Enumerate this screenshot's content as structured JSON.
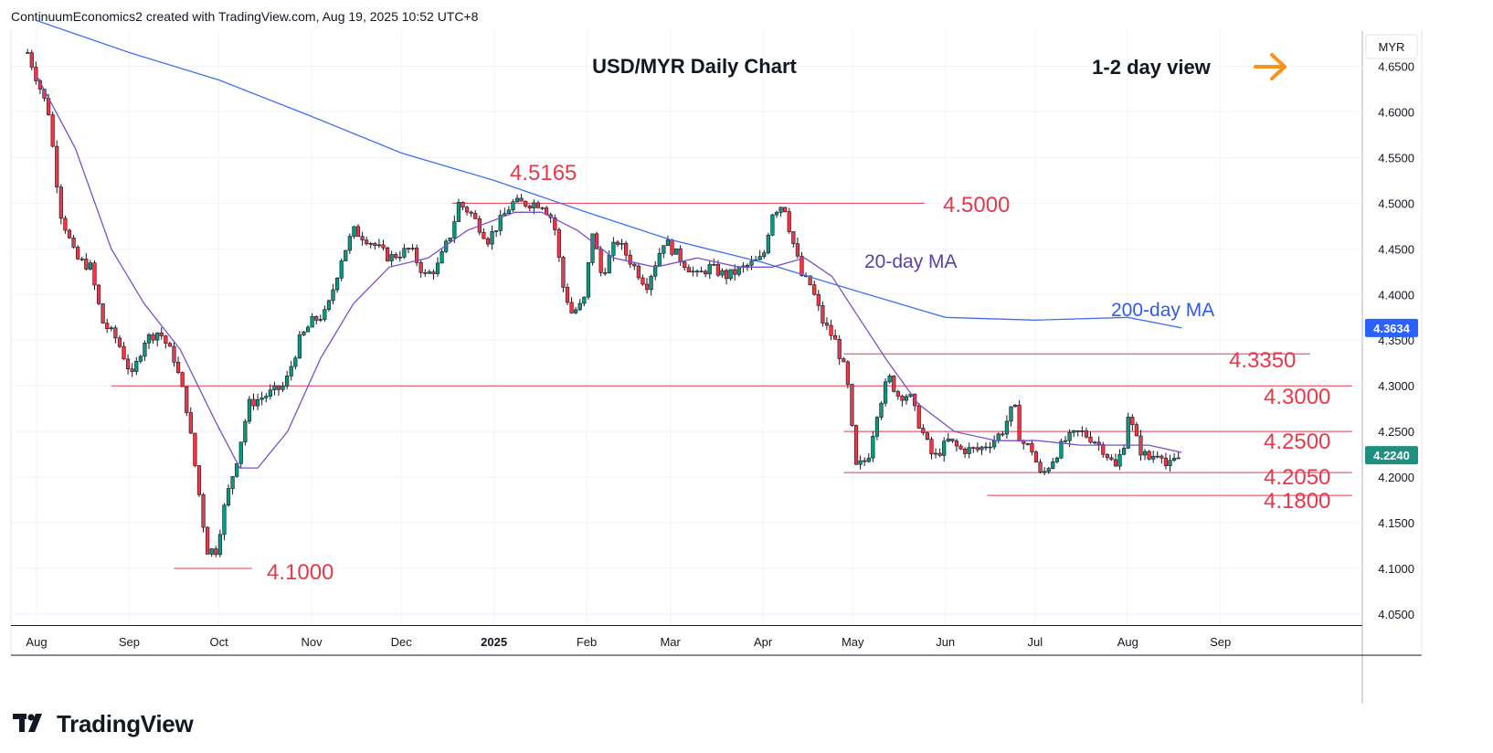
{
  "header": {
    "text": "ContinuumEconomics2 created with TradingView.com, Aug 19, 2025 10:52 UTC+8"
  },
  "footer": {
    "brand": "TradingView"
  },
  "colors": {
    "up": "#089981",
    "down": "#f23645",
    "ma20": "#7b4fc9",
    "ma200": "#3f6ff0",
    "level_line": "#e5394b",
    "level_text": "#e5394b",
    "arrow": "#f7931a",
    "price_tag": "#1f8f7f",
    "ma200_tag": "#2962ff"
  },
  "chart_data": {
    "type": "candlestick",
    "title": "USD/MYR Daily Chart",
    "subtitle": "1-2 day view",
    "currency": "MYR",
    "ylim": [
      4.04,
      4.69
    ],
    "yticks": [
      "4.6500",
      "4.6000",
      "4.5500",
      "4.5000",
      "4.4500",
      "4.4000",
      "4.3500",
      "4.3000",
      "4.2500",
      "4.2000",
      "4.1500",
      "4.1000",
      "4.0500"
    ],
    "xticks": [
      "Aug",
      "Sep",
      "Oct",
      "Nov",
      "Dec",
      "2025",
      "Feb",
      "Mar",
      "Apr",
      "May",
      "Jun",
      "Jul",
      "Aug",
      "Sep"
    ],
    "last_price": "4.2240",
    "ma200_value": "4.3634",
    "levels": [
      {
        "label": "4.5165",
        "value": 4.5165,
        "line": false
      },
      {
        "label": "4.5000",
        "value": 4.5,
        "line": true
      },
      {
        "label": "4.3350",
        "value": 4.335,
        "line": true
      },
      {
        "label": "4.3000",
        "value": 4.3,
        "line": true
      },
      {
        "label": "4.2500",
        "value": 4.25,
        "line": true
      },
      {
        "label": "4.2050",
        "value": 4.205,
        "line": true
      },
      {
        "label": "4.1800",
        "value": 4.18,
        "line": true
      },
      {
        "label": "4.1000",
        "value": 4.1,
        "line": true
      }
    ],
    "annotations": [
      "20-day MA",
      "200-day MA"
    ],
    "series": [
      {
        "name": "USD/MYR",
        "kind": "ohlc"
      },
      {
        "name": "20-day MA",
        "kind": "line"
      },
      {
        "name": "200-day MA",
        "kind": "line"
      }
    ],
    "close_path": [
      {
        "date": "2024-07-29",
        "v": 4.665
      },
      {
        "date": "2024-08-05",
        "v": 4.6
      },
      {
        "date": "2024-08-09",
        "v": 4.49
      },
      {
        "date": "2024-08-14",
        "v": 4.44
      },
      {
        "date": "2024-08-19",
        "v": 4.43
      },
      {
        "date": "2024-08-23",
        "v": 4.37
      },
      {
        "date": "2024-08-28",
        "v": 4.35
      },
      {
        "date": "2024-09-02",
        "v": 4.31
      },
      {
        "date": "2024-09-06",
        "v": 4.35
      },
      {
        "date": "2024-09-11",
        "v": 4.36
      },
      {
        "date": "2024-09-16",
        "v": 4.33
      },
      {
        "date": "2024-09-20",
        "v": 4.28
      },
      {
        "date": "2024-09-24",
        "v": 4.19
      },
      {
        "date": "2024-09-27",
        "v": 4.12
      },
      {
        "date": "2024-09-30",
        "v": 4.12
      },
      {
        "date": "2024-10-03",
        "v": 4.17
      },
      {
        "date": "2024-10-07",
        "v": 4.22
      },
      {
        "date": "2024-10-11",
        "v": 4.28
      },
      {
        "date": "2024-10-17",
        "v": 4.29
      },
      {
        "date": "2024-10-23",
        "v": 4.3
      },
      {
        "date": "2024-10-28",
        "v": 4.35
      },
      {
        "date": "2024-11-01",
        "v": 4.37
      },
      {
        "date": "2024-11-06",
        "v": 4.38
      },
      {
        "date": "2024-11-11",
        "v": 4.44
      },
      {
        "date": "2024-11-15",
        "v": 4.47
      },
      {
        "date": "2024-11-20",
        "v": 4.46
      },
      {
        "date": "2024-11-27",
        "v": 4.44
      },
      {
        "date": "2024-12-04",
        "v": 4.45
      },
      {
        "date": "2024-12-09",
        "v": 4.42
      },
      {
        "date": "2024-12-13",
        "v": 4.43
      },
      {
        "date": "2024-12-18",
        "v": 4.47
      },
      {
        "date": "2024-12-20",
        "v": 4.5
      },
      {
        "date": "2024-12-24",
        "v": 4.49
      },
      {
        "date": "2024-12-30",
        "v": 4.46
      },
      {
        "date": "2025-01-03",
        "v": 4.48
      },
      {
        "date": "2025-01-07",
        "v": 4.5
      },
      {
        "date": "2025-01-13",
        "v": 4.5
      },
      {
        "date": "2025-01-17",
        "v": 4.5
      },
      {
        "date": "2025-01-21",
        "v": 4.48
      },
      {
        "date": "2025-01-24",
        "v": 4.41
      },
      {
        "date": "2025-01-27",
        "v": 4.38
      },
      {
        "date": "2025-01-31",
        "v": 4.39
      },
      {
        "date": "2025-02-03",
        "v": 4.47
      },
      {
        "date": "2025-02-06",
        "v": 4.42
      },
      {
        "date": "2025-02-11",
        "v": 4.46
      },
      {
        "date": "2025-02-17",
        "v": 4.43
      },
      {
        "date": "2025-02-21",
        "v": 4.41
      },
      {
        "date": "2025-02-27",
        "v": 4.46
      },
      {
        "date": "2025-03-04",
        "v": 4.44
      },
      {
        "date": "2025-03-10",
        "v": 4.42
      },
      {
        "date": "2025-03-14",
        "v": 4.43
      },
      {
        "date": "2025-03-20",
        "v": 4.42
      },
      {
        "date": "2025-03-26",
        "v": 4.43
      },
      {
        "date": "2025-04-01",
        "v": 4.44
      },
      {
        "date": "2025-04-04",
        "v": 4.49
      },
      {
        "date": "2025-04-08",
        "v": 4.5
      },
      {
        "date": "2025-04-10",
        "v": 4.47
      },
      {
        "date": "2025-04-14",
        "v": 4.42
      },
      {
        "date": "2025-04-17",
        "v": 4.41
      },
      {
        "date": "2025-04-21",
        "v": 4.37
      },
      {
        "date": "2025-04-25",
        "v": 4.35
      },
      {
        "date": "2025-04-29",
        "v": 4.31
      },
      {
        "date": "2025-05-02",
        "v": 4.21
      },
      {
        "date": "2025-05-06",
        "v": 4.22
      },
      {
        "date": "2025-05-09",
        "v": 4.27
      },
      {
        "date": "2025-05-13",
        "v": 4.31
      },
      {
        "date": "2025-05-16",
        "v": 4.29
      },
      {
        "date": "2025-05-20",
        "v": 4.29
      },
      {
        "date": "2025-05-23",
        "v": 4.26
      },
      {
        "date": "2025-05-28",
        "v": 4.22
      },
      {
        "date": "2025-06-02",
        "v": 4.24
      },
      {
        "date": "2025-06-06",
        "v": 4.23
      },
      {
        "date": "2025-06-12",
        "v": 4.23
      },
      {
        "date": "2025-06-17",
        "v": 4.24
      },
      {
        "date": "2025-06-20",
        "v": 4.25
      },
      {
        "date": "2025-06-24",
        "v": 4.28
      },
      {
        "date": "2025-06-26",
        "v": 4.24
      },
      {
        "date": "2025-06-30",
        "v": 4.23
      },
      {
        "date": "2025-07-03",
        "v": 4.2
      },
      {
        "date": "2025-07-07",
        "v": 4.22
      },
      {
        "date": "2025-07-11",
        "v": 4.24
      },
      {
        "date": "2025-07-16",
        "v": 4.25
      },
      {
        "date": "2025-07-21",
        "v": 4.24
      },
      {
        "date": "2025-07-24",
        "v": 4.23
      },
      {
        "date": "2025-07-28",
        "v": 4.21
      },
      {
        "date": "2025-07-31",
        "v": 4.24
      },
      {
        "date": "2025-08-01",
        "v": 4.27
      },
      {
        "date": "2025-08-05",
        "v": 4.23
      },
      {
        "date": "2025-08-08",
        "v": 4.22
      },
      {
        "date": "2025-08-12",
        "v": 4.23
      },
      {
        "date": "2025-08-14",
        "v": 4.21
      },
      {
        "date": "2025-08-19",
        "v": 4.224
      }
    ],
    "ma20_path": [
      {
        "date": "2024-08-01",
        "v": 4.64
      },
      {
        "date": "2024-08-14",
        "v": 4.56
      },
      {
        "date": "2024-08-26",
        "v": 4.45
      },
      {
        "date": "2024-09-06",
        "v": 4.39
      },
      {
        "date": "2024-09-18",
        "v": 4.34
      },
      {
        "date": "2024-09-30",
        "v": 4.26
      },
      {
        "date": "2024-10-08",
        "v": 4.21
      },
      {
        "date": "2024-10-14",
        "v": 4.21
      },
      {
        "date": "2024-10-24",
        "v": 4.25
      },
      {
        "date": "2024-11-04",
        "v": 4.33
      },
      {
        "date": "2024-11-15",
        "v": 4.39
      },
      {
        "date": "2024-11-27",
        "v": 4.43
      },
      {
        "date": "2024-12-10",
        "v": 4.44
      },
      {
        "date": "2024-12-23",
        "v": 4.47
      },
      {
        "date": "2025-01-08",
        "v": 4.49
      },
      {
        "date": "2025-01-17",
        "v": 4.49
      },
      {
        "date": "2025-01-29",
        "v": 4.47
      },
      {
        "date": "2025-02-10",
        "v": 4.44
      },
      {
        "date": "2025-02-24",
        "v": 4.43
      },
      {
        "date": "2025-03-10",
        "v": 4.44
      },
      {
        "date": "2025-03-24",
        "v": 4.43
      },
      {
        "date": "2025-04-04",
        "v": 4.43
      },
      {
        "date": "2025-04-15",
        "v": 4.44
      },
      {
        "date": "2025-04-24",
        "v": 4.42
      },
      {
        "date": "2025-05-02",
        "v": 4.38
      },
      {
        "date": "2025-05-12",
        "v": 4.33
      },
      {
        "date": "2025-05-23",
        "v": 4.28
      },
      {
        "date": "2025-06-04",
        "v": 4.25
      },
      {
        "date": "2025-06-18",
        "v": 4.24
      },
      {
        "date": "2025-07-02",
        "v": 4.24
      },
      {
        "date": "2025-07-16",
        "v": 4.235
      },
      {
        "date": "2025-07-30",
        "v": 4.235
      },
      {
        "date": "2025-08-08",
        "v": 4.235
      },
      {
        "date": "2025-08-19",
        "v": 4.227
      }
    ],
    "ma200_path": [
      {
        "date": "2024-08-01",
        "v": 4.7
      },
      {
        "date": "2024-09-01",
        "v": 4.665
      },
      {
        "date": "2024-10-01",
        "v": 4.635
      },
      {
        "date": "2024-11-01",
        "v": 4.595
      },
      {
        "date": "2024-12-01",
        "v": 4.555
      },
      {
        "date": "2025-01-01",
        "v": 4.525
      },
      {
        "date": "2025-02-01",
        "v": 4.49
      },
      {
        "date": "2025-03-01",
        "v": 4.46
      },
      {
        "date": "2025-04-01",
        "v": 4.435
      },
      {
        "date": "2025-05-01",
        "v": 4.405
      },
      {
        "date": "2025-06-01",
        "v": 4.375
      },
      {
        "date": "2025-07-01",
        "v": 4.372
      },
      {
        "date": "2025-08-01",
        "v": 4.375
      },
      {
        "date": "2025-08-19",
        "v": 4.3634
      }
    ]
  }
}
